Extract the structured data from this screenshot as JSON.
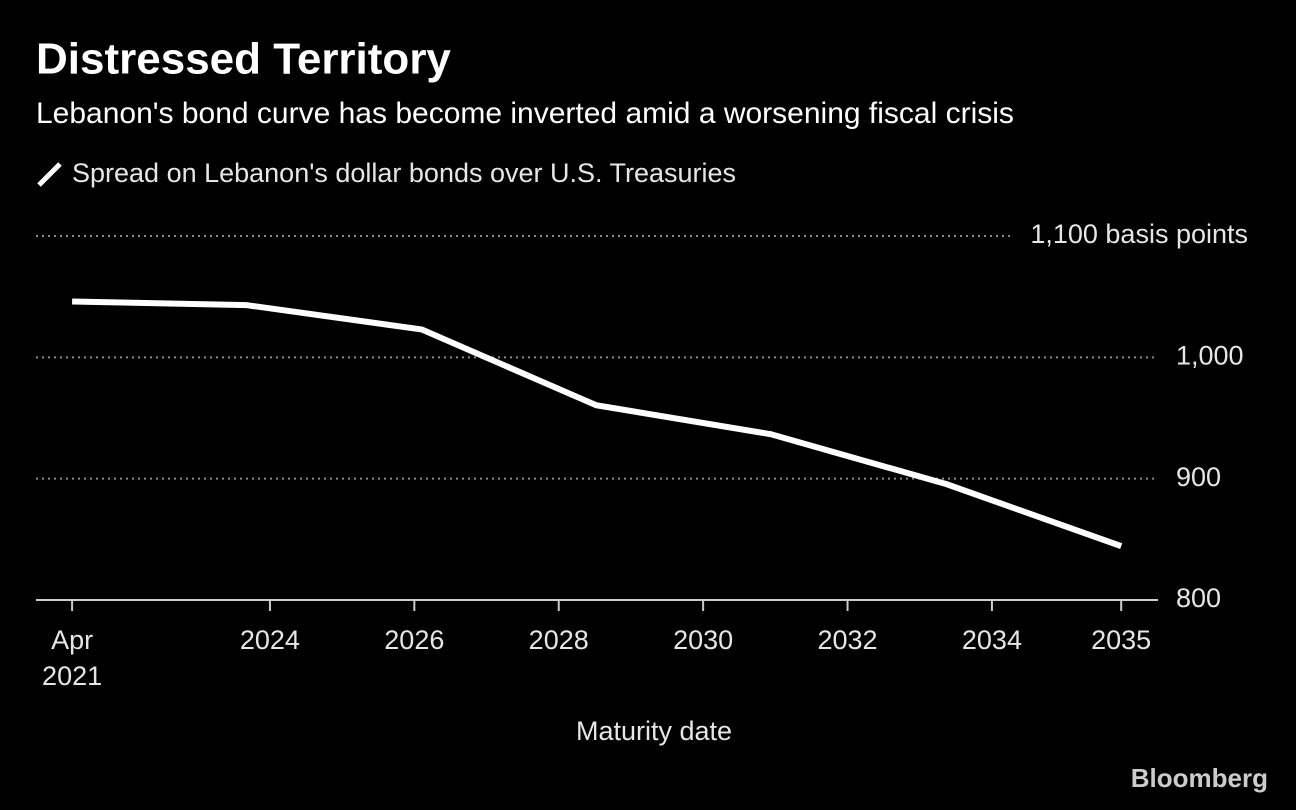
{
  "chart_data": {
    "type": "line",
    "title": "Distressed Territory",
    "subtitle": "Lebanon's bond curve has become inverted amid a worsening fiscal crisis",
    "x_label": "Maturity date",
    "source": "Bloomberg",
    "x": [
      2021.26,
      2023.68,
      2026.1,
      2028.52,
      2030.94,
      2033.37,
      2035.79
    ],
    "series": [
      {
        "name": "Spread on Lebanon's dollar bonds over U.S. Treasuries",
        "color": "#ffffff",
        "values": [
          1046,
          1043,
          1023,
          960.5,
          936.6,
          895.5,
          844.4
        ]
      }
    ],
    "xlim": [
      2020.76,
      2036.3
    ],
    "xticks": [
      {
        "value": 2021.26,
        "label": "Apr 2021"
      },
      2024,
      2026,
      2028,
      2030,
      2032,
      2034,
      {
        "value": 2035.79,
        "label": "2035"
      }
    ],
    "ylim": [
      800,
      1100
    ],
    "yticks": [
      800,
      900,
      {
        "value": 1000,
        "label": "1,000"
      },
      {
        "value": 1100,
        "label": "1,100 basis points"
      }
    ],
    "grid": true,
    "background": "#000000"
  }
}
